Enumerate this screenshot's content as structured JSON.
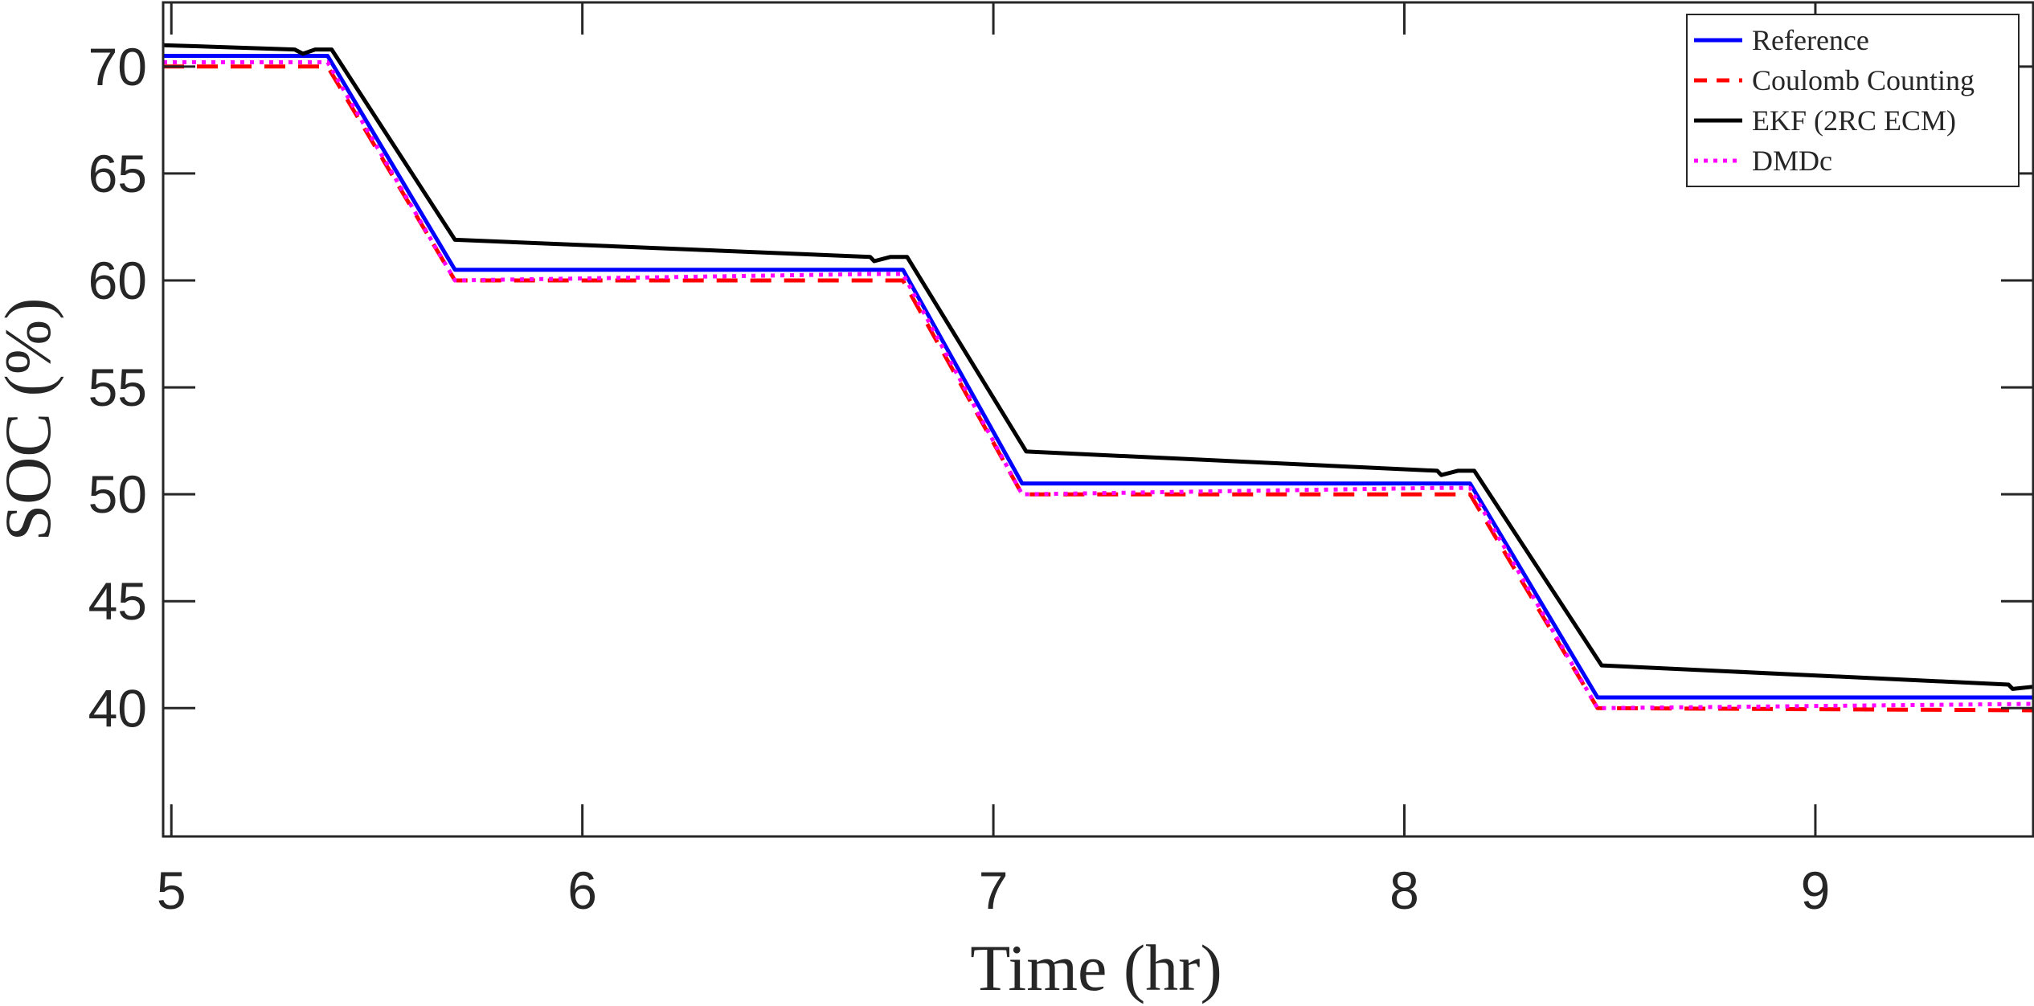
{
  "chart_data": {
    "type": "line",
    "title": "",
    "xlabel": "Time (hr)",
    "ylabel": "SOC (%)",
    "xlim": [
      4.98,
      9.53
    ],
    "ylim": [
      34,
      73
    ],
    "x_ticks": [
      5,
      6,
      7,
      8,
      9
    ],
    "x_tick_labels": [
      "5",
      "6",
      "7",
      "8",
      "9"
    ],
    "y_ticks": [
      40,
      45,
      50,
      55,
      60,
      65,
      70
    ],
    "y_tick_labels": [
      "40",
      "45",
      "50",
      "55",
      "60",
      "65",
      "70"
    ],
    "grid": false,
    "legend_position": "top-right",
    "series": [
      {
        "name": "Reference",
        "color": "#0000ff",
        "style": "solid",
        "x": [
          4.98,
          5.3,
          5.38,
          5.69,
          6.7,
          6.78,
          7.07,
          8.08,
          8.16,
          8.47,
          9.53
        ],
        "y": [
          70.5,
          70.5,
          70.5,
          60.5,
          60.5,
          60.5,
          50.5,
          50.5,
          50.5,
          40.5,
          40.5
        ]
      },
      {
        "name": "Coulomb Counting",
        "color": "#ff0000",
        "style": "dashed",
        "x": [
          4.98,
          5.3,
          5.38,
          5.69,
          6.7,
          6.78,
          7.07,
          8.08,
          8.16,
          8.47,
          9.53
        ],
        "y": [
          70.0,
          70.0,
          70.0,
          60.0,
          60.0,
          60.0,
          50.0,
          50.0,
          50.0,
          40.0,
          39.9
        ]
      },
      {
        "name": "EKF (2RC ECM)",
        "color": "#000000",
        "style": "solid",
        "x": [
          4.98,
          5.3,
          5.32,
          5.35,
          5.39,
          5.69,
          6.7,
          6.71,
          6.75,
          6.79,
          7.08,
          8.08,
          8.09,
          8.13,
          8.17,
          8.48,
          9.47,
          9.48,
          9.53
        ],
        "y": [
          71.0,
          70.8,
          70.6,
          70.8,
          70.8,
          61.9,
          61.1,
          60.9,
          61.1,
          61.1,
          52.0,
          51.1,
          50.9,
          51.1,
          51.1,
          42.0,
          41.1,
          40.9,
          41.0
        ]
      },
      {
        "name": "DMDc",
        "color": "#ff00ff",
        "style": "dotted",
        "x": [
          4.98,
          5.3,
          5.38,
          5.69,
          6.7,
          6.78,
          7.07,
          8.08,
          8.16,
          8.47,
          9.53
        ],
        "y": [
          70.2,
          70.2,
          70.2,
          60.0,
          60.3,
          60.3,
          50.0,
          50.3,
          50.3,
          40.0,
          40.2
        ]
      }
    ]
  }
}
